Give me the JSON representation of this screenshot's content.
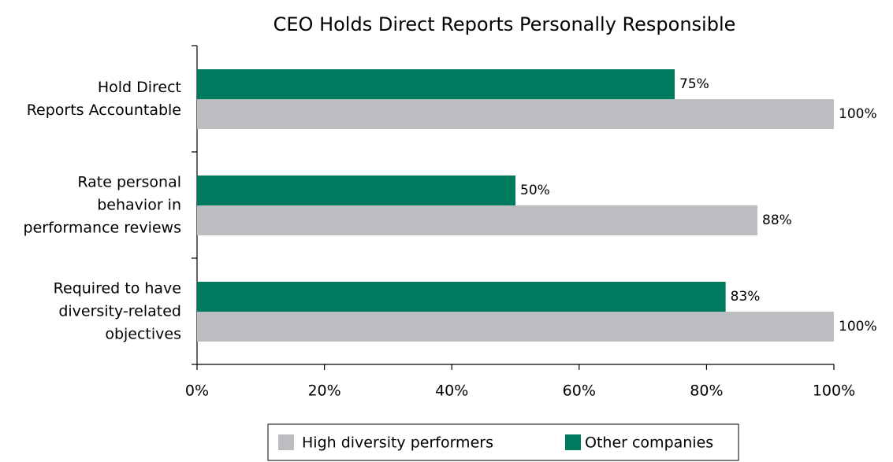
{
  "chart_data": {
    "type": "hbar",
    "title": "CEO Holds Direct Reports Personally Responsible",
    "categories": [
      [
        "Hold Direct",
        "Reports Accountable"
      ],
      [
        "Rate personal",
        "behavior in",
        "performance reviews"
      ],
      [
        "Required to have",
        "diversity-related",
        "objectives"
      ]
    ],
    "series": [
      {
        "name": "High diversity performers",
        "color": "#bcbdc0",
        "values": [
          100,
          88,
          100
        ],
        "value_labels": [
          "100%",
          "88%",
          "100%"
        ]
      },
      {
        "name": "Other companies",
        "color": "#007a5e",
        "values": [
          75,
          50,
          83
        ],
        "value_labels": [
          "75%",
          "50%",
          "83%"
        ]
      }
    ],
    "xlim": [
      0,
      100
    ],
    "xticks": [
      {
        "value": 0,
        "label": "0%"
      },
      {
        "value": 20,
        "label": "20%"
      },
      {
        "value": 40,
        "label": "40%"
      },
      {
        "value": 60,
        "label": "60%"
      },
      {
        "value": 80,
        "label": "80%"
      },
      {
        "value": 100,
        "label": "100%"
      }
    ],
    "legend": "bottom"
  }
}
